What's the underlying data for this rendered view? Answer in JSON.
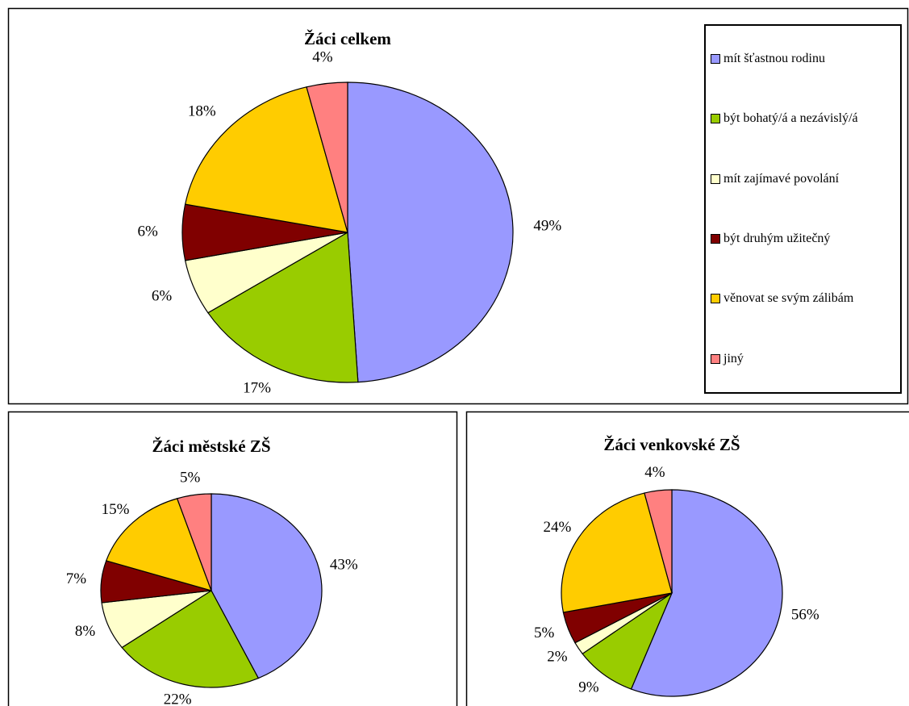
{
  "chart_data": [
    {
      "type": "pie",
      "title": "Žáci celkem",
      "categories": [
        "mít šťastnou rodinu",
        "být bohatý/á a nezávislý/á",
        "mít zajímavé povolání",
        "být druhým užitečný",
        "věnovat se svým zálibám",
        "jiný"
      ],
      "values": [
        49,
        17,
        6,
        6,
        18,
        4
      ],
      "value_labels": [
        "49%",
        "17%",
        "6%",
        "6%",
        "18%",
        "4%"
      ],
      "colors": [
        "#9999ff",
        "#99cc00",
        "#ffffcc",
        "#800000",
        "#ffcc00",
        "#ff8080"
      ],
      "legend": "right"
    },
    {
      "type": "pie",
      "title": "Žáci městské ZŠ",
      "values": [
        43,
        22,
        8,
        7,
        15,
        5
      ],
      "value_labels": [
        "43%",
        "22%",
        "8%",
        "7%",
        "15%",
        "5%"
      ],
      "colors": [
        "#9999ff",
        "#99cc00",
        "#ffffcc",
        "#800000",
        "#ffcc00",
        "#ff8080"
      ]
    },
    {
      "type": "pie",
      "title": "Žáci venkovské ZŠ",
      "values": [
        56,
        9,
        2,
        5,
        24,
        4
      ],
      "value_labels": [
        "56%",
        "9%",
        "2%",
        "5%",
        "24%",
        "4%"
      ],
      "colors": [
        "#9999ff",
        "#99cc00",
        "#ffffcc",
        "#800000",
        "#ffcc00",
        "#ff8080"
      ]
    }
  ]
}
